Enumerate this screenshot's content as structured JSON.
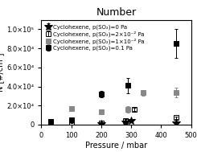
{
  "chart_data": {
    "type": "scatter",
    "title": "Number",
    "x_label": "Pressure / mbar",
    "y_label": "N [#/cm³]",
    "xlim": [
      0,
      500
    ],
    "ylim": [
      0,
      110000
    ],
    "xticks": [
      0,
      100,
      200,
      300,
      400,
      500
    ],
    "yticks": [
      0,
      {
        "value": 20000,
        "label": "2.0×10⁴"
      },
      {
        "value": 40000,
        "label": "4.0×10⁴"
      },
      {
        "value": 60000,
        "label": "6.0×10⁴"
      },
      {
        "value": 80000,
        "label": "8.0×10⁴"
      },
      {
        "value": 100000,
        "label": "1.0×10⁵"
      }
    ],
    "legend": "upper left",
    "series": [
      {
        "name": "Cyclohexene, p(SO₂)=0 Pa",
        "marker": "star",
        "color": "black",
        "x": [
          200,
          280,
          300,
          450
        ],
        "values": [
          1000,
          2500,
          4000,
          2000
        ],
        "error": [
          300,
          800,
          1200,
          600
        ]
      },
      {
        "name": "Cyclohexene, p(SO₂)=2×10⁻² Pa",
        "marker": "open_square",
        "color": "black",
        "x": [
          30,
          100,
          200,
          280,
          310,
          450
        ],
        "values": [
          500,
          2800,
          1800,
          4500,
          16000,
          7500
        ],
        "error": [
          200,
          800,
          500,
          1500,
          2000,
          1200
        ]
      },
      {
        "name": "Cyclohexene, p(SO₂)=1×10⁻² Pa",
        "marker": "square",
        "color": "#888888",
        "x": [
          30,
          100,
          200,
          290,
          340,
          450
        ],
        "values": [
          2000,
          16500,
          13500,
          16000,
          33500,
          33500
        ],
        "error": [
          500,
          1500,
          2000,
          3000,
          3000,
          5000
        ]
      },
      {
        "name": "Cyclohexene, p(SO₂)=0.1 Pa",
        "marker": "square",
        "color": "black",
        "x": [
          30,
          100,
          200,
          290,
          450
        ],
        "values": [
          3000,
          5000,
          32000,
          41000,
          85000
        ],
        "error": [
          800,
          2000,
          3000,
          8000,
          15000
        ]
      }
    ]
  }
}
